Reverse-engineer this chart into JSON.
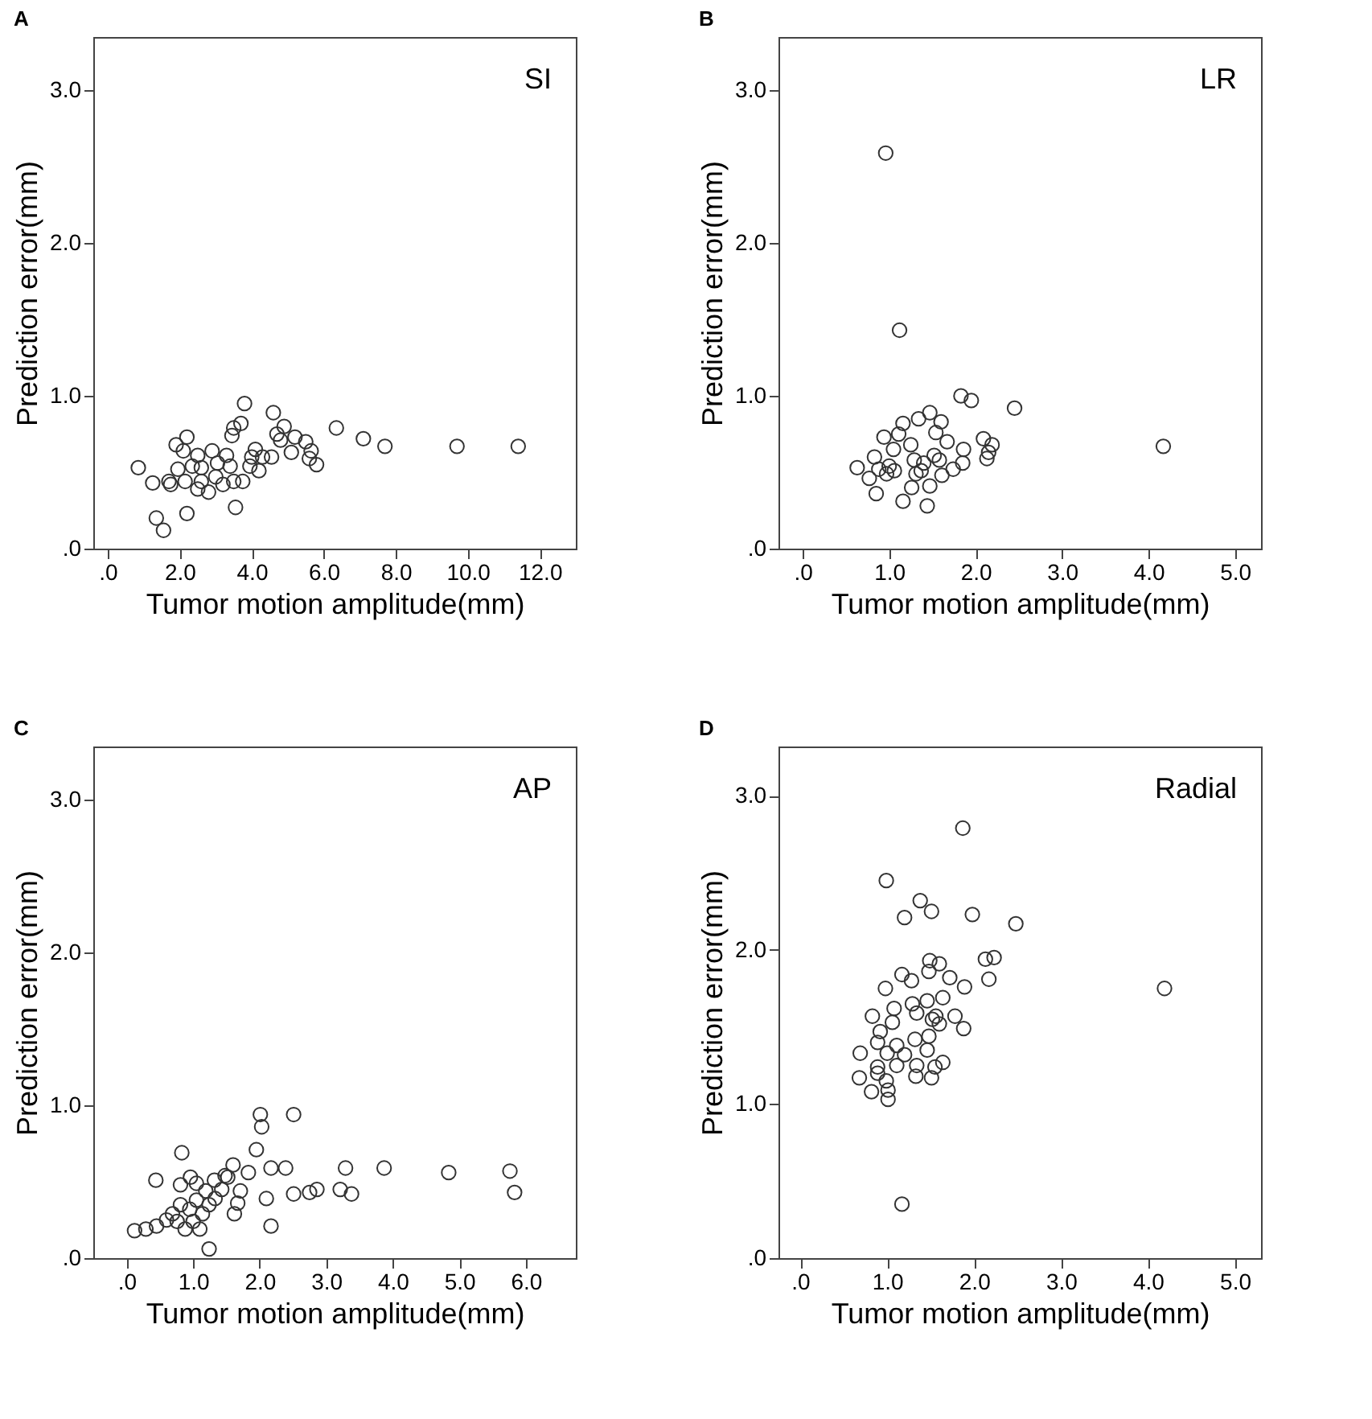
{
  "chart_data": [
    {
      "type": "scatter",
      "title": "A",
      "xlabel": "Tumor motion amplitude(mm)",
      "ylabel": "Prediction error(mm)",
      "annotations": [
        "SI"
      ],
      "marker": "circle",
      "grid": false,
      "xlim": [
        -0.4,
        13.0
      ],
      "xticks": [
        {
          "value": 0,
          "label": ".0"
        },
        {
          "value": 2,
          "label": "2.0"
        },
        {
          "value": 4,
          "label": "4.0"
        },
        {
          "value": 6,
          "label": "6.0"
        },
        {
          "value": 8,
          "label": "8.0"
        },
        {
          "value": 10,
          "label": "10.0"
        },
        {
          "value": 12,
          "label": "12.0"
        }
      ],
      "ylim": [
        0,
        3.35
      ],
      "yticks": [
        {
          "value": 0,
          "label": ".0"
        },
        {
          "value": 1,
          "label": "1.0"
        },
        {
          "value": 2,
          "label": "2.0"
        },
        {
          "value": 3,
          "label": "3.0"
        }
      ],
      "x": [
        0.85,
        1.25,
        1.35,
        1.55,
        1.7,
        1.75,
        1.9,
        1.95,
        2.1,
        2.2,
        2.2,
        2.15,
        2.35,
        2.5,
        2.5,
        2.6,
        2.8,
        2.9,
        3.0,
        3.2,
        3.3,
        3.4,
        3.45,
        3.5,
        3.5,
        3.55,
        3.7,
        3.8,
        3.75,
        4.0,
        4.1,
        4.2,
        4.3,
        4.55,
        4.6,
        4.7,
        4.9,
        4.8,
        5.1,
        5.2,
        5.5,
        5.65,
        5.6,
        5.8,
        6.35,
        7.1,
        7.7,
        9.7,
        11.4,
        2.6,
        3.05,
        3.95
      ],
      "series": [
        {
          "color": "#333333",
          "values": [
            0.53,
            0.43,
            0.2,
            0.12,
            0.44,
            0.42,
            0.68,
            0.52,
            0.64,
            0.73,
            0.23,
            0.44,
            0.54,
            0.61,
            0.39,
            0.53,
            0.37,
            0.64,
            0.47,
            0.42,
            0.61,
            0.54,
            0.74,
            0.79,
            0.44,
            0.27,
            0.82,
            0.95,
            0.44,
            0.6,
            0.65,
            0.51,
            0.6,
            0.6,
            0.89,
            0.75,
            0.8,
            0.71,
            0.63,
            0.73,
            0.7,
            0.64,
            0.59,
            0.55,
            0.79,
            0.72,
            0.67,
            0.67,
            0.67,
            0.44,
            0.56,
            0.54
          ]
        }
      ]
    },
    {
      "type": "scatter",
      "title": "B",
      "xlabel": "Tumor motion amplitude(mm)",
      "ylabel": "Prediction error(mm)",
      "annotations": [
        "LR"
      ],
      "marker": "circle",
      "grid": false,
      "xlim": [
        -0.28,
        5.3
      ],
      "xticks": [
        {
          "value": 0,
          "label": ".0"
        },
        {
          "value": 1,
          "label": "1.0"
        },
        {
          "value": 2,
          "label": "2.0"
        },
        {
          "value": 3,
          "label": "3.0"
        },
        {
          "value": 4,
          "label": "4.0"
        },
        {
          "value": 5,
          "label": "5.0"
        }
      ],
      "ylim": [
        0,
        3.35
      ],
      "yticks": [
        {
          "value": 0,
          "label": ".0"
        },
        {
          "value": 1,
          "label": "1.0"
        },
        {
          "value": 2,
          "label": "2.0"
        },
        {
          "value": 3,
          "label": "3.0"
        }
      ],
      "x": [
        0.96,
        1.12,
        1.83,
        1.95,
        2.45,
        4.17,
        0.63,
        0.77,
        0.83,
        0.85,
        0.94,
        0.97,
        1.0,
        1.05,
        1.11,
        1.16,
        1.16,
        1.25,
        1.26,
        1.29,
        1.34,
        1.37,
        1.44,
        1.47,
        1.47,
        1.52,
        1.54,
        1.6,
        1.61,
        1.67,
        1.74,
        1.85,
        1.86,
        2.09,
        2.13,
        2.19,
        2.15,
        1.06,
        1.4,
        1.58,
        1.31,
        0.88
      ],
      "series": [
        {
          "color": "#333333",
          "values": [
            2.59,
            1.43,
            1.0,
            0.97,
            0.92,
            0.67,
            0.53,
            0.46,
            0.6,
            0.36,
            0.73,
            0.49,
            0.54,
            0.65,
            0.75,
            0.82,
            0.31,
            0.68,
            0.4,
            0.58,
            0.85,
            0.51,
            0.28,
            0.89,
            0.41,
            0.61,
            0.76,
            0.83,
            0.48,
            0.7,
            0.52,
            0.56,
            0.65,
            0.72,
            0.59,
            0.68,
            0.63,
            0.51,
            0.56,
            0.58,
            0.49,
            0.52
          ]
        }
      ]
    },
    {
      "type": "scatter",
      "title": "C",
      "xlabel": "Tumor motion amplitude(mm)",
      "ylabel": "Prediction error(mm)",
      "annotations": [
        "AP"
      ],
      "marker": "circle",
      "grid": false,
      "xlim": [
        -0.5,
        6.75
      ],
      "xticks": [
        {
          "value": 0,
          "label": ".0"
        },
        {
          "value": 1,
          "label": "1.0"
        },
        {
          "value": 2,
          "label": "2.0"
        },
        {
          "value": 3,
          "label": "3.0"
        },
        {
          "value": 4,
          "label": "4.0"
        },
        {
          "value": 5,
          "label": "5.0"
        },
        {
          "value": 6,
          "label": "6.0"
        }
      ],
      "ylim": [
        0,
        3.35
      ],
      "yticks": [
        {
          "value": 0,
          "label": ".0"
        },
        {
          "value": 1,
          "label": "1.0"
        },
        {
          "value": 2,
          "label": "2.0"
        },
        {
          "value": 3,
          "label": "3.0"
        }
      ],
      "x": [
        2.01,
        2.03,
        2.51,
        0.83,
        1.95,
        3.29,
        3.87,
        4.84,
        5.76,
        5.83,
        2.51,
        2.86,
        2.75,
        3.21,
        3.38,
        2.39,
        2.17,
        1.6,
        1.83,
        2.1,
        0.44,
        0.96,
        1.32,
        1.48,
        1.71,
        0.12,
        0.29,
        0.45,
        0.6,
        0.69,
        0.76,
        0.81,
        0.88,
        0.95,
        1.0,
        1.05,
        1.1,
        1.14,
        1.19,
        1.24,
        1.24,
        1.33,
        1.43,
        1.52,
        1.62,
        1.67,
        2.17,
        0.81,
        1.05
      ],
      "series": [
        {
          "color": "#333333",
          "values": [
            0.94,
            0.86,
            0.94,
            0.69,
            0.71,
            0.59,
            0.59,
            0.56,
            0.57,
            0.43,
            0.42,
            0.45,
            0.43,
            0.45,
            0.42,
            0.59,
            0.59,
            0.61,
            0.56,
            0.39,
            0.51,
            0.53,
            0.51,
            0.54,
            0.44,
            0.18,
            0.19,
            0.21,
            0.25,
            0.29,
            0.24,
            0.35,
            0.19,
            0.32,
            0.24,
            0.38,
            0.19,
            0.29,
            0.44,
            0.35,
            0.06,
            0.39,
            0.45,
            0.53,
            0.29,
            0.36,
            0.21,
            0.48,
            0.49
          ]
        }
      ]
    },
    {
      "type": "scatter",
      "title": "D",
      "xlabel": "Tumor motion amplitude(mm)",
      "ylabel": "Prediction error(mm)",
      "annotations": [
        "Radial"
      ],
      "marker": "circle",
      "grid": false,
      "xlim": [
        -0.25,
        5.3
      ],
      "xticks": [
        {
          "value": 0,
          "label": ".0"
        },
        {
          "value": 1,
          "label": "1.0"
        },
        {
          "value": 2,
          "label": "2.0"
        },
        {
          "value": 3,
          "label": "3.0"
        },
        {
          "value": 4,
          "label": "4.0"
        },
        {
          "value": 5,
          "label": "5.0"
        }
      ],
      "ylim": [
        0,
        3.32
      ],
      "yticks": [
        {
          "value": 0,
          "label": ".0"
        },
        {
          "value": 1,
          "label": "1.0"
        },
        {
          "value": 2,
          "label": "2.0"
        },
        {
          "value": 3,
          "label": "3.0"
        }
      ],
      "x": [
        1.87,
        0.99,
        1.38,
        1.51,
        1.2,
        1.98,
        2.48,
        2.13,
        2.23,
        2.17,
        4.19,
        1.49,
        1.6,
        1.48,
        1.72,
        1.89,
        1.17,
        1.28,
        0.98,
        1.64,
        1.29,
        1.46,
        1.08,
        1.34,
        0.83,
        1.56,
        1.78,
        1.06,
        1.6,
        1.88,
        0.92,
        1.48,
        1.32,
        0.89,
        1.11,
        0.69,
        1.0,
        1.46,
        1.2,
        1.11,
        1.34,
        1.64,
        1.55,
        0.89,
        0.68,
        0.89,
        0.99,
        1.33,
        1.51,
        0.82,
        1.01,
        1.01,
        1.17,
        1.52
      ],
      "series": [
        {
          "color": "#333333",
          "values": [
            2.79,
            2.45,
            2.32,
            2.25,
            2.21,
            2.23,
            2.17,
            1.94,
            1.95,
            1.81,
            1.75,
            1.93,
            1.91,
            1.86,
            1.82,
            1.76,
            1.84,
            1.8,
            1.75,
            1.69,
            1.65,
            1.67,
            1.62,
            1.59,
            1.57,
            1.57,
            1.57,
            1.53,
            1.52,
            1.49,
            1.47,
            1.44,
            1.42,
            1.4,
            1.38,
            1.33,
            1.33,
            1.35,
            1.32,
            1.25,
            1.25,
            1.27,
            1.24,
            1.24,
            1.17,
            1.2,
            1.15,
            1.18,
            1.17,
            1.08,
            1.09,
            1.03,
            0.35,
            1.55
          ]
        }
      ]
    }
  ]
}
